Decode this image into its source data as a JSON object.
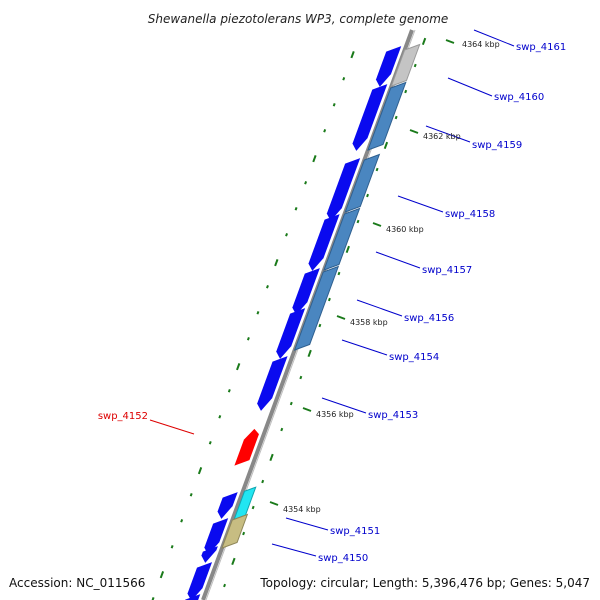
{
  "title": "Shewanella piezotolerans WP3, complete genome",
  "footer": {
    "accession": "Accession: NC_011566",
    "topology": "Topology: circular; Length: 5,396,476 bp; Genes: 5,047"
  },
  "colors": {
    "backbone": "#888888",
    "cds_forward": "#0a0aef",
    "cds_highlight": "#ff0000",
    "tick": "#1a7a1a",
    "feature_blue": "#4a86c0",
    "feature_gray": "#c4c4c4",
    "feature_cyan": "#22e6f2",
    "feature_khaki": "#c7bd82",
    "label_default": "#0000cc",
    "label_highlight": "#dd0000"
  },
  "kbp_labels": [
    "4364 kbp",
    "4362 kbp",
    "4360 kbp",
    "4358 kbp",
    "4356 kbp",
    "4354 kbp"
  ],
  "gene_labels": [
    {
      "name": "swp_4161",
      "highlight": false
    },
    {
      "name": "swp_4160",
      "highlight": false
    },
    {
      "name": "swp_4159",
      "highlight": false
    },
    {
      "name": "swp_4158",
      "highlight": false
    },
    {
      "name": "swp_4157",
      "highlight": false
    },
    {
      "name": "swp_4156",
      "highlight": false
    },
    {
      "name": "swp_4154",
      "highlight": false
    },
    {
      "name": "swp_4153",
      "highlight": false
    },
    {
      "name": "swp_4152",
      "highlight": true
    },
    {
      "name": "swp_4151",
      "highlight": false
    },
    {
      "name": "swp_4150",
      "highlight": false
    }
  ]
}
